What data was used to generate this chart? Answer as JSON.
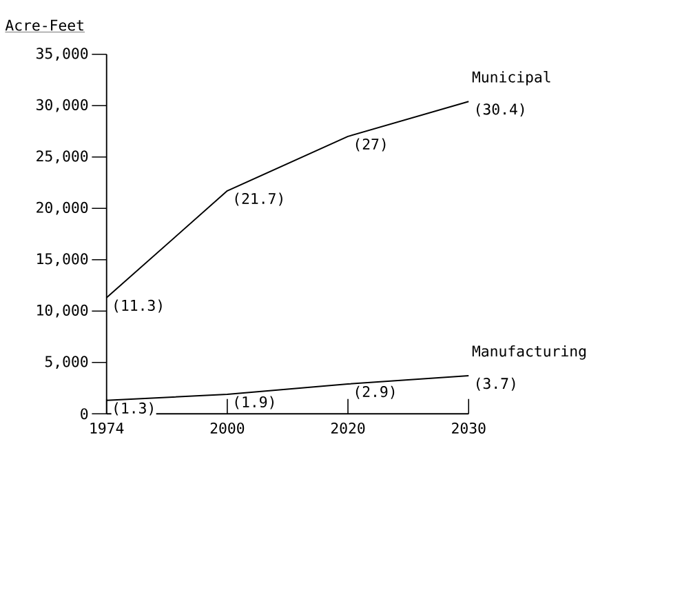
{
  "chart_data": {
    "type": "line",
    "ylabel": "Acre-Feet",
    "categories": [
      "1974",
      "2000",
      "2020",
      "2030"
    ],
    "series": [
      {
        "name": "Municipal",
        "color": "#000000",
        "values": [
          11300,
          21700,
          27000,
          30400
        ]
      },
      {
        "name": "Manufacturing",
        "color": "#000000",
        "values": [
          1300,
          1900,
          2900,
          3700
        ]
      }
    ],
    "annotations": [
      {
        "text": "(11.3)",
        "x": "1974",
        "y": 11300
      },
      {
        "text": "(21.7)",
        "x": "2000",
        "y": 21700
      },
      {
        "text": "(27)",
        "x": "2020",
        "y": 27000
      },
      {
        "text": "(30.4)",
        "x": "2030",
        "y": 30400
      },
      {
        "text": "(1.3)",
        "x": "1974",
        "y": 1300
      },
      {
        "text": "(1.9)",
        "x": "2000",
        "y": 1900
      },
      {
        "text": "(2.9)",
        "x": "2020",
        "y": 2900
      },
      {
        "text": "(3.7)",
        "x": "2030",
        "y": 3700
      }
    ],
    "ylim": [
      0,
      35000
    ],
    "yticks": [
      0,
      {
        "value": 5000,
        "label": "5,000"
      },
      {
        "value": 10000,
        "label": "10,000"
      },
      {
        "value": 15000,
        "label": "15,000"
      },
      {
        "value": 20000,
        "label": "20,000"
      },
      {
        "value": 25000,
        "label": "25,000"
      },
      {
        "value": 30000,
        "label": "30,000"
      },
      {
        "value": 35000,
        "label": "35,000"
      }
    ],
    "grid": false,
    "marker": "none",
    "line_style": "solid"
  }
}
